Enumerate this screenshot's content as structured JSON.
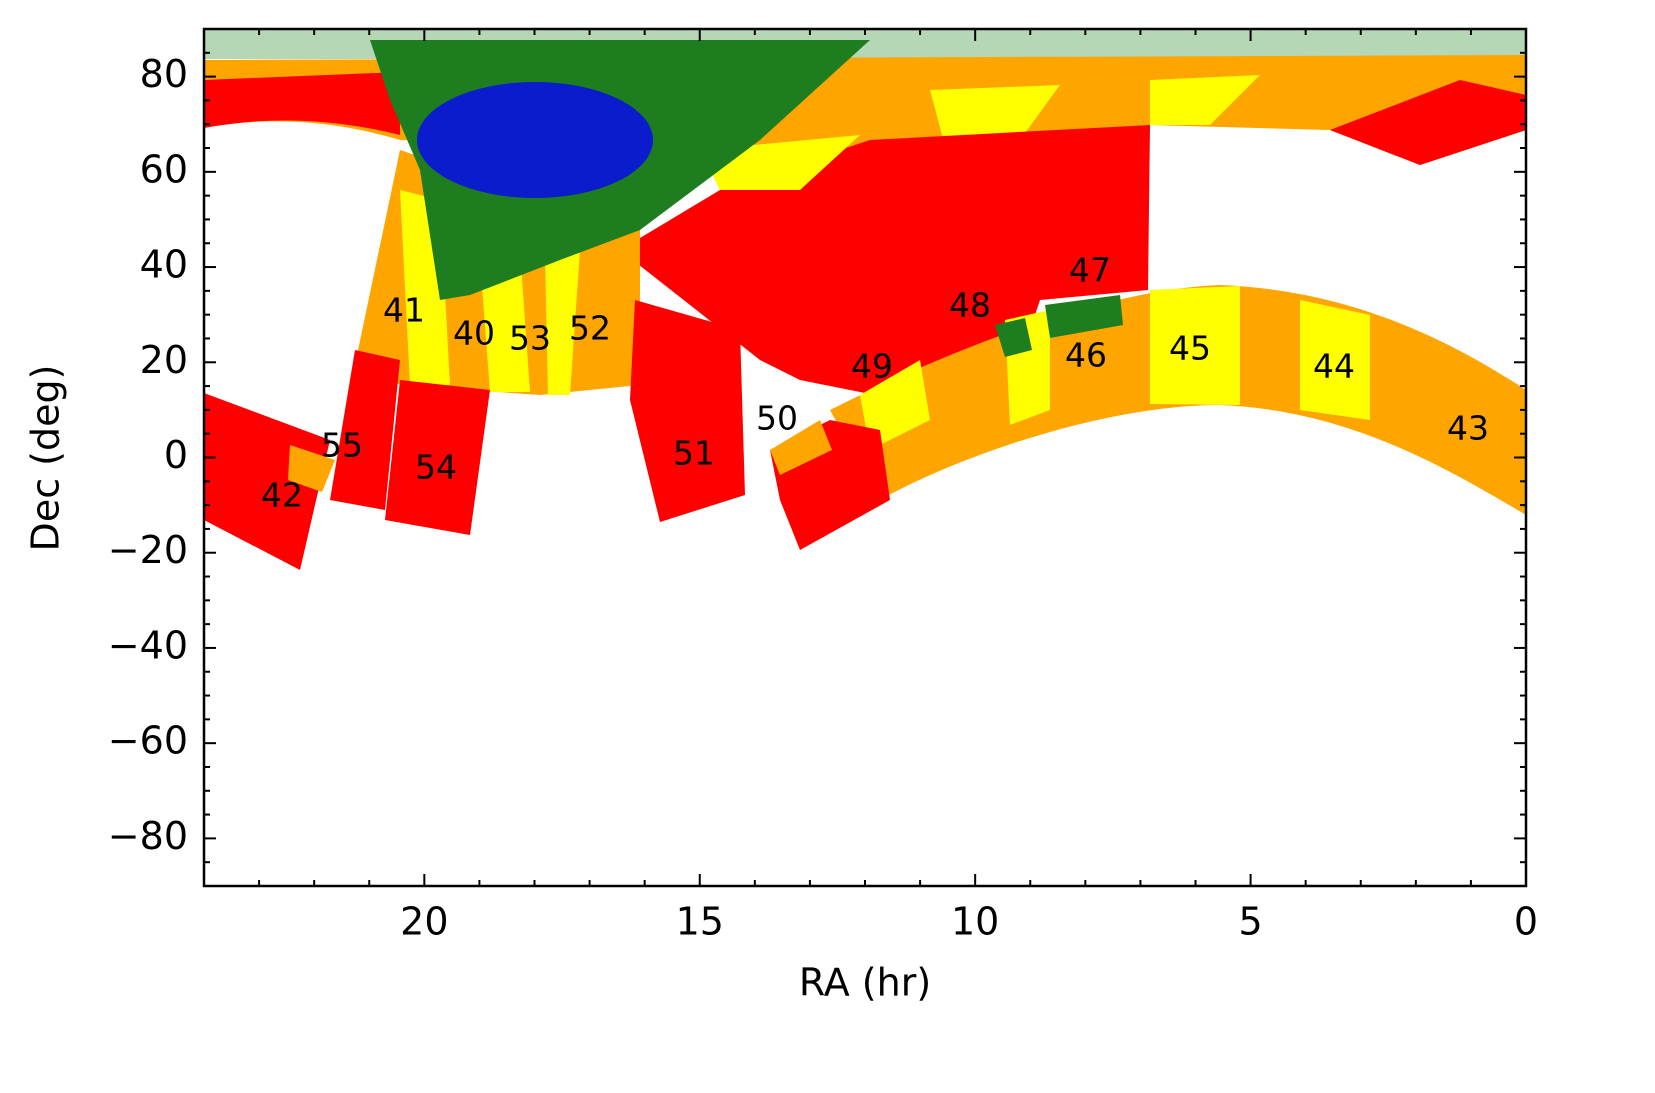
{
  "chart_data": {
    "type": "sky-map",
    "xlabel": "RA (hr)",
    "ylabel": "Dec (deg)",
    "xlim": [
      24,
      0
    ],
    "ylim": [
      -90,
      90
    ],
    "xticks": [
      20,
      15,
      10,
      5,
      0
    ],
    "yticks": [
      {
        "value": -80,
        "label": "−80"
      },
      {
        "value": -60,
        "label": "−60"
      },
      {
        "value": -40,
        "label": "−40"
      },
      {
        "value": -20,
        "label": "−20"
      },
      0,
      20,
      40,
      60,
      80
    ],
    "xminorticks": [
      24,
      23,
      22,
      21,
      19,
      18,
      17,
      16,
      14,
      13,
      12,
      11,
      9,
      8,
      7,
      6,
      4,
      3,
      2,
      1
    ],
    "yminorticks": [
      -90,
      -85,
      -75,
      -70,
      -65,
      -55,
      -50,
      -45,
      -35,
      -30,
      -25,
      -15,
      -10,
      -5,
      5,
      10,
      15,
      25,
      30,
      35,
      45,
      50,
      55,
      65,
      70,
      75,
      85,
      90
    ],
    "annotations": [
      "41",
      "40",
      "53",
      "52",
      "55",
      "54",
      "42",
      "51",
      "50",
      "49",
      "48",
      "47",
      "46",
      "45",
      "44",
      "43"
    ]
  }
}
